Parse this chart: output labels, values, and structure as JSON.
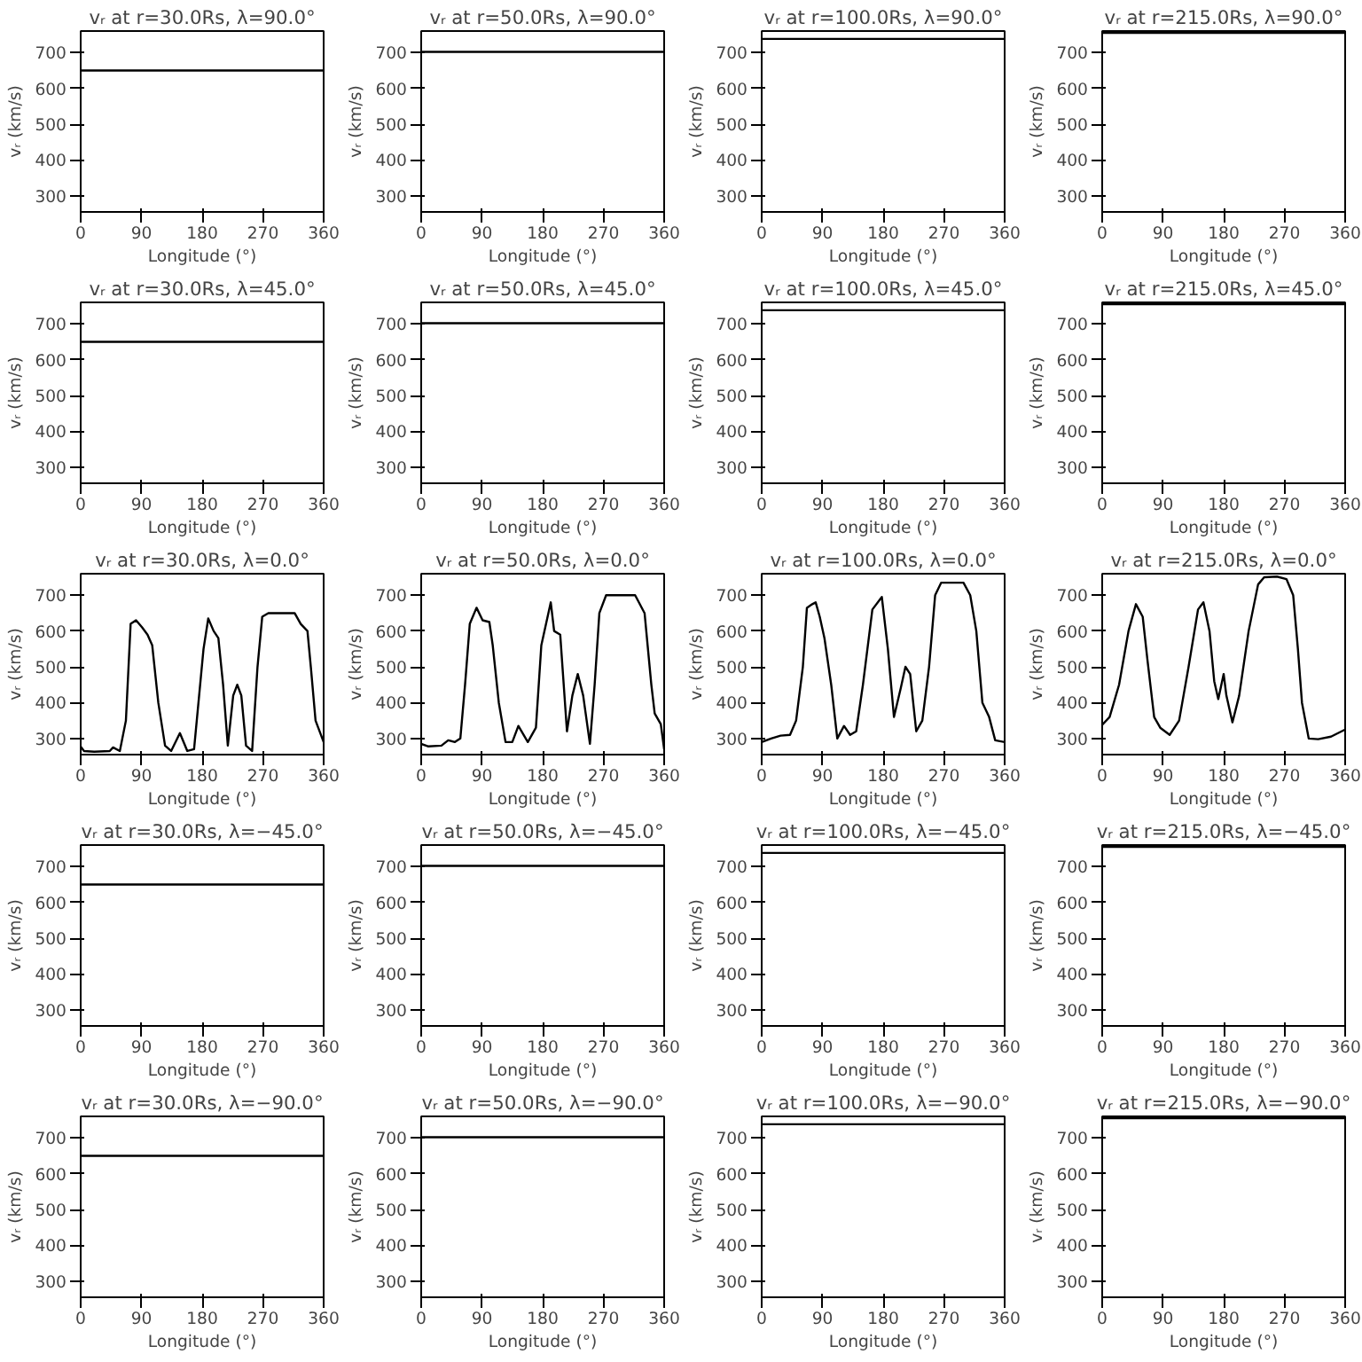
{
  "chart_data": [
    {
      "type": "line",
      "title": "vᵣ at r=30.0Rs, λ=90.0°",
      "xlabel": "Longitude (°)",
      "ylabel": "vᵣ (km/s)",
      "xlim": [
        0,
        360
      ],
      "ylim": [
        255,
        760
      ],
      "xticks": [
        0,
        90,
        180,
        270,
        360
      ],
      "yticks": [
        300,
        400,
        500,
        600,
        700
      ],
      "series": [
        {
          "color": "#000000",
          "x": [
            0,
            360
          ],
          "values": [
            650,
            650
          ]
        }
      ]
    },
    {
      "type": "line",
      "title": "vᵣ at r=50.0Rs, λ=90.0°",
      "xlabel": "Longitude (°)",
      "ylabel": "vᵣ (km/s)",
      "xlim": [
        0,
        360
      ],
      "ylim": [
        255,
        760
      ],
      "xticks": [
        0,
        90,
        180,
        270,
        360
      ],
      "yticks": [
        300,
        400,
        500,
        600,
        700
      ],
      "series": [
        {
          "color": "#000000",
          "x": [
            0,
            360
          ],
          "values": [
            702,
            702
          ]
        }
      ]
    },
    {
      "type": "line",
      "title": "vᵣ at r=100.0Rs, λ=90.0°",
      "xlabel": "Longitude (°)",
      "ylabel": "vᵣ (km/s)",
      "xlim": [
        0,
        360
      ],
      "ylim": [
        255,
        760
      ],
      "xticks": [
        0,
        90,
        180,
        270,
        360
      ],
      "yticks": [
        300,
        400,
        500,
        600,
        700
      ],
      "series": [
        {
          "color": "#000000",
          "x": [
            0,
            360
          ],
          "values": [
            738,
            738
          ]
        }
      ]
    },
    {
      "type": "line",
      "title": "vᵣ at r=215.0Rs, λ=90.0°",
      "xlabel": "Longitude (°)",
      "ylabel": "vᵣ (km/s)",
      "xlim": [
        0,
        360
      ],
      "ylim": [
        255,
        760
      ],
      "xticks": [
        0,
        90,
        180,
        270,
        360
      ],
      "yticks": [
        300,
        400,
        500,
        600,
        700
      ],
      "series": [
        {
          "color": "#000000",
          "x": [
            0,
            360
          ],
          "values": [
            755,
            755
          ]
        }
      ]
    },
    {
      "type": "line",
      "title": "vᵣ at r=30.0Rs, λ=45.0°",
      "xlabel": "Longitude (°)",
      "ylabel": "vᵣ (km/s)",
      "xlim": [
        0,
        360
      ],
      "ylim": [
        255,
        760
      ],
      "xticks": [
        0,
        90,
        180,
        270,
        360
      ],
      "yticks": [
        300,
        400,
        500,
        600,
        700
      ],
      "series": [
        {
          "color": "#000000",
          "x": [
            0,
            360
          ],
          "values": [
            650,
            650
          ]
        }
      ]
    },
    {
      "type": "line",
      "title": "vᵣ at r=50.0Rs, λ=45.0°",
      "xlabel": "Longitude (°)",
      "ylabel": "vᵣ (km/s)",
      "xlim": [
        0,
        360
      ],
      "ylim": [
        255,
        760
      ],
      "xticks": [
        0,
        90,
        180,
        270,
        360
      ],
      "yticks": [
        300,
        400,
        500,
        600,
        700
      ],
      "series": [
        {
          "color": "#000000",
          "x": [
            0,
            360
          ],
          "values": [
            702,
            702
          ]
        }
      ]
    },
    {
      "type": "line",
      "title": "vᵣ at r=100.0Rs, λ=45.0°",
      "xlabel": "Longitude (°)",
      "ylabel": "vᵣ (km/s)",
      "xlim": [
        0,
        360
      ],
      "ylim": [
        255,
        760
      ],
      "xticks": [
        0,
        90,
        180,
        270,
        360
      ],
      "yticks": [
        300,
        400,
        500,
        600,
        700
      ],
      "series": [
        {
          "color": "#000000",
          "x": [
            0,
            360
          ],
          "values": [
            738,
            738
          ]
        }
      ]
    },
    {
      "type": "line",
      "title": "vᵣ at r=215.0Rs, λ=45.0°",
      "xlabel": "Longitude (°)",
      "ylabel": "vᵣ (km/s)",
      "xlim": [
        0,
        360
      ],
      "ylim": [
        255,
        760
      ],
      "xticks": [
        0,
        90,
        180,
        270,
        360
      ],
      "yticks": [
        300,
        400,
        500,
        600,
        700
      ],
      "series": [
        {
          "color": "#000000",
          "x": [
            0,
            360
          ],
          "values": [
            755,
            755
          ]
        }
      ]
    },
    {
      "type": "line",
      "title": "vᵣ at r=30.0Rs, λ=0.0°",
      "xlabel": "Longitude (°)",
      "ylabel": "vᵣ (km/s)",
      "xlim": [
        0,
        360
      ],
      "ylim": [
        255,
        760
      ],
      "xticks": [
        0,
        90,
        180,
        270,
        360
      ],
      "yticks": [
        300,
        400,
        500,
        600,
        700
      ],
      "series": [
        {
          "color": "#000000",
          "x": [
            0,
            5,
            20,
            43,
            48,
            58,
            67,
            74,
            82,
            91,
            99,
            106,
            115,
            125,
            134,
            147,
            158,
            168,
            182,
            189,
            197,
            204,
            211,
            218,
            226,
            232,
            238,
            245,
            254,
            262,
            269,
            278,
            317,
            326,
            336,
            341,
            348,
            360
          ],
          "values": [
            277,
            265,
            263,
            265,
            275,
            265,
            350,
            620,
            630,
            610,
            590,
            560,
            400,
            280,
            265,
            315,
            265,
            270,
            550,
            635,
            600,
            580,
            450,
            280,
            420,
            450,
            420,
            280,
            265,
            500,
            640,
            650,
            650,
            620,
            600,
            500,
            350,
            290
          ]
        }
      ]
    },
    {
      "type": "line",
      "title": "vᵣ at r=50.0Rs, λ=0.0°",
      "xlabel": "Longitude (°)",
      "ylabel": "vᵣ (km/s)",
      "xlim": [
        0,
        360
      ],
      "ylim": [
        255,
        760
      ],
      "xticks": [
        0,
        90,
        180,
        270,
        360
      ],
      "yticks": [
        300,
        400,
        500,
        600,
        700
      ],
      "series": [
        {
          "color": "#000000",
          "x": [
            0,
            10,
            30,
            40,
            50,
            58,
            65,
            72,
            82,
            91,
            101,
            106,
            115,
            125,
            135,
            144,
            158,
            170,
            178,
            192,
            197,
            206,
            216,
            224,
            232,
            240,
            250,
            257,
            264,
            274,
            317,
            331,
            341,
            346,
            355,
            360
          ],
          "values": [
            285,
            278,
            280,
            295,
            290,
            300,
            450,
            620,
            665,
            630,
            625,
            560,
            400,
            290,
            290,
            335,
            290,
            330,
            560,
            680,
            600,
            590,
            320,
            420,
            480,
            420,
            285,
            450,
            650,
            700,
            700,
            650,
            450,
            370,
            340,
            270
          ]
        }
      ]
    },
    {
      "type": "line",
      "title": "vᵣ at r=100.0Rs, λ=0.0°",
      "xlabel": "Longitude (°)",
      "ylabel": "vᵣ (km/s)",
      "xlim": [
        0,
        360
      ],
      "ylim": [
        255,
        760
      ],
      "xticks": [
        0,
        90,
        180,
        270,
        360
      ],
      "yticks": [
        300,
        400,
        500,
        600,
        700
      ],
      "series": [
        {
          "color": "#000000",
          "x": [
            0,
            14,
            28,
            42,
            51,
            61,
            67,
            75,
            80,
            86,
            93,
            103,
            112,
            122,
            131,
            140,
            150,
            164,
            178,
            187,
            196,
            206,
            213,
            220,
            229,
            238,
            248,
            257,
            266,
            299,
            309,
            318,
            327,
            337,
            346,
            360
          ],
          "values": [
            290,
            300,
            308,
            310,
            350,
            500,
            665,
            675,
            680,
            640,
            580,
            450,
            300,
            335,
            310,
            320,
            450,
            660,
            695,
            550,
            360,
            440,
            500,
            480,
            320,
            350,
            500,
            700,
            735,
            735,
            700,
            600,
            400,
            360,
            295,
            290
          ]
        }
      ]
    },
    {
      "type": "line",
      "title": "vᵣ at r=215.0Rs, λ=0.0°",
      "xlabel": "Longitude (°)",
      "ylabel": "vᵣ (km/s)",
      "xlim": [
        0,
        360
      ],
      "ylim": [
        255,
        760
      ],
      "xticks": [
        0,
        90,
        180,
        270,
        360
      ],
      "yticks": [
        300,
        400,
        500,
        600,
        700
      ],
      "series": [
        {
          "color": "#000000",
          "x": [
            0,
            11,
            25,
            39,
            50,
            60,
            67,
            77,
            86,
            100,
            114,
            128,
            142,
            150,
            159,
            166,
            172,
            180,
            184,
            193,
            203,
            217,
            231,
            240,
            259,
            273,
            283,
            290,
            296,
            306,
            320,
            339,
            360
          ],
          "values": [
            338,
            360,
            450,
            600,
            675,
            640,
            520,
            360,
            330,
            310,
            350,
            500,
            660,
            680,
            600,
            460,
            410,
            480,
            420,
            345,
            420,
            600,
            730,
            750,
            752,
            745,
            700,
            550,
            400,
            300,
            298,
            305,
            325
          ]
        }
      ]
    },
    {
      "type": "line",
      "title": "vᵣ at r=30.0Rs, λ=−45.0°",
      "xlabel": "Longitude (°)",
      "ylabel": "vᵣ (km/s)",
      "xlim": [
        0,
        360
      ],
      "ylim": [
        255,
        760
      ],
      "xticks": [
        0,
        90,
        180,
        270,
        360
      ],
      "yticks": [
        300,
        400,
        500,
        600,
        700
      ],
      "series": [
        {
          "color": "#000000",
          "x": [
            0,
            360
          ],
          "values": [
            650,
            650
          ]
        }
      ]
    },
    {
      "type": "line",
      "title": "vᵣ at r=50.0Rs, λ=−45.0°",
      "xlabel": "Longitude (°)",
      "ylabel": "vᵣ (km/s)",
      "xlim": [
        0,
        360
      ],
      "ylim": [
        255,
        760
      ],
      "xticks": [
        0,
        90,
        180,
        270,
        360
      ],
      "yticks": [
        300,
        400,
        500,
        600,
        700
      ],
      "series": [
        {
          "color": "#000000",
          "x": [
            0,
            360
          ],
          "values": [
            702,
            702
          ]
        }
      ]
    },
    {
      "type": "line",
      "title": "vᵣ at r=100.0Rs, λ=−45.0°",
      "xlabel": "Longitude (°)",
      "ylabel": "vᵣ (km/s)",
      "xlim": [
        0,
        360
      ],
      "ylim": [
        255,
        760
      ],
      "xticks": [
        0,
        90,
        180,
        270,
        360
      ],
      "yticks": [
        300,
        400,
        500,
        600,
        700
      ],
      "series": [
        {
          "color": "#000000",
          "x": [
            0,
            360
          ],
          "values": [
            738,
            738
          ]
        }
      ]
    },
    {
      "type": "line",
      "title": "vᵣ at r=215.0Rs, λ=−45.0°",
      "xlabel": "Longitude (°)",
      "ylabel": "vᵣ (km/s)",
      "xlim": [
        0,
        360
      ],
      "ylim": [
        255,
        760
      ],
      "xticks": [
        0,
        90,
        180,
        270,
        360
      ],
      "yticks": [
        300,
        400,
        500,
        600,
        700
      ],
      "series": [
        {
          "color": "#000000",
          "x": [
            0,
            360
          ],
          "values": [
            755,
            755
          ]
        }
      ]
    },
    {
      "type": "line",
      "title": "vᵣ at r=30.0Rs, λ=−90.0°",
      "xlabel": "Longitude (°)",
      "ylabel": "vᵣ (km/s)",
      "xlim": [
        0,
        360
      ],
      "ylim": [
        255,
        760
      ],
      "xticks": [
        0,
        90,
        180,
        270,
        360
      ],
      "yticks": [
        300,
        400,
        500,
        600,
        700
      ],
      "series": [
        {
          "color": "#000000",
          "x": [
            0,
            360
          ],
          "values": [
            650,
            650
          ]
        }
      ]
    },
    {
      "type": "line",
      "title": "vᵣ at r=50.0Rs, λ=−90.0°",
      "xlabel": "Longitude (°)",
      "ylabel": "vᵣ (km/s)",
      "xlim": [
        0,
        360
      ],
      "ylim": [
        255,
        760
      ],
      "xticks": [
        0,
        90,
        180,
        270,
        360
      ],
      "yticks": [
        300,
        400,
        500,
        600,
        700
      ],
      "series": [
        {
          "color": "#000000",
          "x": [
            0,
            360
          ],
          "values": [
            702,
            702
          ]
        }
      ]
    },
    {
      "type": "line",
      "title": "vᵣ at r=100.0Rs, λ=−90.0°",
      "xlabel": "Longitude (°)",
      "ylabel": "vᵣ (km/s)",
      "xlim": [
        0,
        360
      ],
      "ylim": [
        255,
        760
      ],
      "xticks": [
        0,
        90,
        180,
        270,
        360
      ],
      "yticks": [
        300,
        400,
        500,
        600,
        700
      ],
      "series": [
        {
          "color": "#000000",
          "x": [
            0,
            360
          ],
          "values": [
            738,
            738
          ]
        }
      ]
    },
    {
      "type": "line",
      "title": "vᵣ at r=215.0Rs, λ=−90.0°",
      "xlabel": "Longitude (°)",
      "ylabel": "vᵣ (km/s)",
      "xlim": [
        0,
        360
      ],
      "ylim": [
        255,
        760
      ],
      "xticks": [
        0,
        90,
        180,
        270,
        360
      ],
      "yticks": [
        300,
        400,
        500,
        600,
        700
      ],
      "series": [
        {
          "color": "#000000",
          "x": [
            0,
            360
          ],
          "values": [
            755,
            755
          ]
        }
      ]
    }
  ]
}
